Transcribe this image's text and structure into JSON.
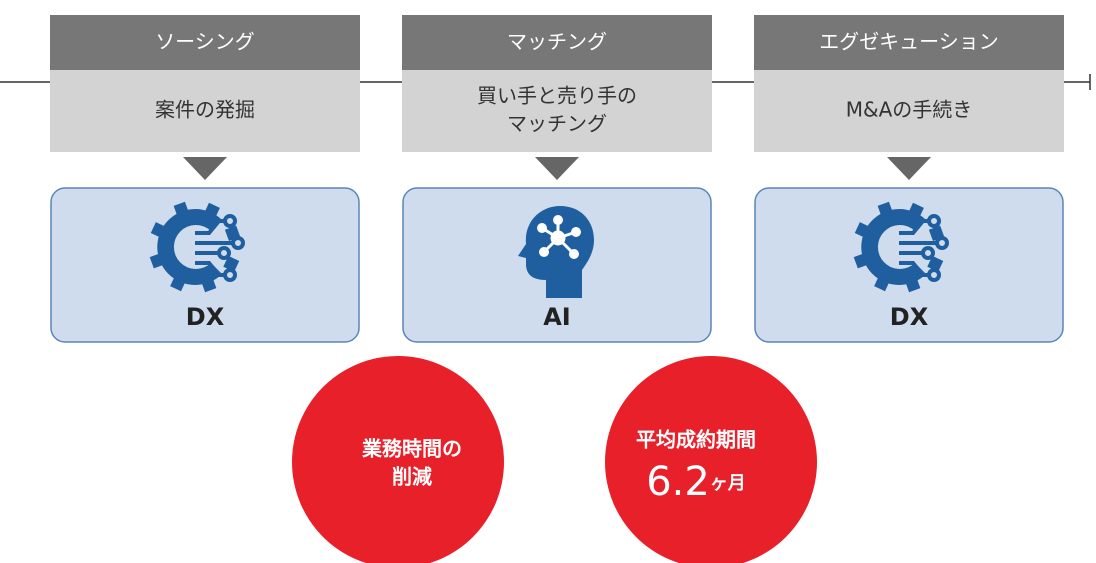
{
  "steps": [
    {
      "header": "ソーシング",
      "description": [
        "案件の発掘"
      ],
      "tool": "DX"
    },
    {
      "header": "マッチング",
      "description": [
        "買い手と売り手の",
        "マッチング"
      ],
      "tool": "AI"
    },
    {
      "header": "エグゼキューション",
      "description": [
        "M&Aの手続き"
      ],
      "tool": "DX"
    }
  ],
  "results": [
    {
      "lines": [
        "業務時間の",
        "削減"
      ]
    },
    {
      "title": "平均成約期間",
      "number": "6.2",
      "unit": "ヶ月"
    }
  ]
}
